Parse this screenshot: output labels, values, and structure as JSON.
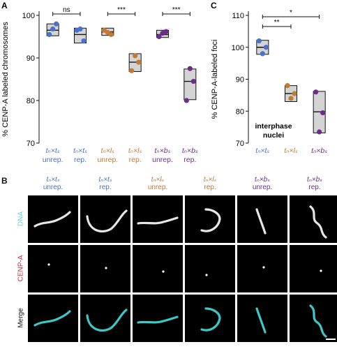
{
  "panels": {
    "a": {
      "letter": "A",
      "chart_data": {
        "type": "scatter",
        "ylabel": "% CENP-A labeled chromosomes",
        "ylim": [
          70,
          100
        ],
        "yticks": [
          70,
          80,
          90,
          100
        ],
        "groups": [
          {
            "label_cross": "tₙ×tₛ",
            "label_state": "unrep.",
            "color": "#4a72c9",
            "points": [
              95.5,
              98.0,
              96.8
            ],
            "box": [
              95.2,
              98.0
            ],
            "median": 96.5
          },
          {
            "label_cross": "tₙ×tₛ",
            "label_state": "rep.",
            "color": "#4a72c9",
            "points": [
              96.5,
              94.0,
              96.8
            ],
            "box": [
              93.5,
              97.0
            ],
            "median": 95.5
          },
          {
            "label_cross": "tₙ×lₛ",
            "label_state": "unrep.",
            "color": "#c27a34",
            "points": [
              96.5,
              95.5,
              96.0
            ],
            "box": [
              95.3,
              97.0
            ],
            "median": 96.1
          },
          {
            "label_cross": "tₙ×lₛ",
            "label_state": "rep.",
            "color": "#c27a34",
            "points": [
              87.0,
              89.0,
              90.5
            ],
            "box": [
              86.8,
              91.0
            ],
            "median": 89.0
          },
          {
            "label_cross": "tₙ×bₛ",
            "label_state": "unrep.",
            "color": "#6b2d8a",
            "points": [
              95.0,
              96.2,
              95.8
            ],
            "box": [
              94.8,
              96.5
            ],
            "median": 95.5
          },
          {
            "label_cross": "tₙ×bₛ",
            "label_state": "rep.",
            "color": "#6b2d8a",
            "points": [
              80.0,
              84.5,
              87.5
            ],
            "box": [
              80.2,
              87.4
            ],
            "median": 84.5
          }
        ],
        "significance": [
          {
            "pair": [
              0,
              1
            ],
            "label": "ns"
          },
          {
            "pair": [
              2,
              3
            ],
            "label": "***"
          },
          {
            "pair": [
              4,
              5
            ],
            "label": "***"
          }
        ]
      }
    },
    "c": {
      "letter": "C",
      "chart_data": {
        "type": "scatter",
        "ylabel": "% CENP-A-labeled foci",
        "ylim": [
          70,
          110
        ],
        "yticks": [
          70,
          80,
          90,
          100,
          110
        ],
        "annotation": "interphase nuclei",
        "groups": [
          {
            "label_cross": "tₙ×tₛ",
            "color": "#4a72c9",
            "points": [
              102.0,
              100.0,
              98.0
            ],
            "box": [
              97.8,
              102.2
            ],
            "median": 100.0
          },
          {
            "label_cross": "tₙ×lₛ",
            "color": "#c27a34",
            "points": [
              88.0,
              85.5,
              84.0
            ],
            "box": [
              83.0,
              88.0
            ],
            "median": 85.5
          },
          {
            "label_cross": "tₙ×bₛ",
            "color": "#6b2d8a",
            "points": [
              86.0,
              79.5,
              73.5
            ],
            "box": [
              73.2,
              86.2
            ],
            "median": 79.8
          }
        ],
        "significance": [
          {
            "pair": [
              0,
              2
            ],
            "label": "*"
          },
          {
            "pair": [
              0,
              1
            ],
            "label": "**"
          }
        ]
      }
    },
    "b": {
      "letter": "B",
      "columns": [
        {
          "cross": "tₙ×tₛ",
          "state": "unrep.",
          "color": "#4a72c9"
        },
        {
          "cross": "tₙ×tₛ",
          "state": "rep.",
          "color": "#4a72c9"
        },
        {
          "cross": "tₙ×lₛ",
          "state": "unrep.",
          "color": "#c27a34"
        },
        {
          "cross": "tₙ×lₛ",
          "state": "rep.",
          "color": "#c27a34"
        },
        {
          "cross": "tₙ×bₛ",
          "state": "unrep.",
          "color": "#6b2d8a"
        },
        {
          "cross": "tₙ×bₛ",
          "state": "rep.",
          "color": "#6b2d8a"
        }
      ],
      "rows": [
        {
          "label": "DNA",
          "color": "#5fd6d6"
        },
        {
          "label": "CENP-A",
          "color": "#c8283c"
        },
        {
          "label": "Merge",
          "color": "#111111"
        }
      ]
    }
  }
}
